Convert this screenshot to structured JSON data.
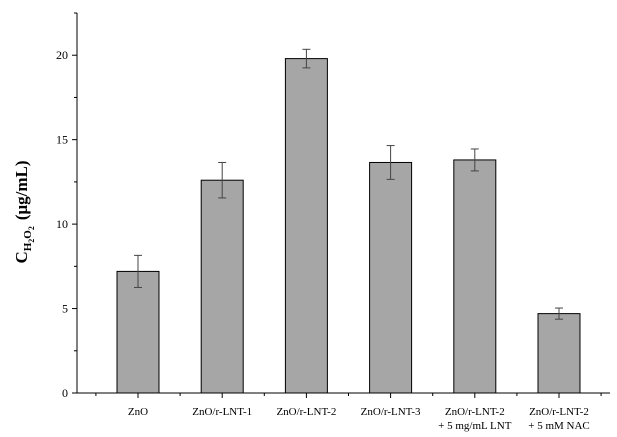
{
  "chart_data": {
    "type": "bar",
    "categories": [
      [
        "ZnO"
      ],
      [
        "ZnO/r-LNT-1"
      ],
      [
        "ZnO/r-LNT-2"
      ],
      [
        "ZnO/r-LNT-3"
      ],
      [
        "ZnO/r-LNT-2",
        "+ 5 mg/mL LNT"
      ],
      [
        "ZnO/r-LNT-2",
        "+ 5 mM NAC"
      ]
    ],
    "values": [
      7.2,
      12.6,
      19.8,
      13.65,
      13.8,
      4.7
    ],
    "errors": [
      0.95,
      1.05,
      0.55,
      1.0,
      0.65,
      0.33
    ],
    "ylabel": {
      "main": "C",
      "sub1": "H",
      "sub2": "2",
      "sub3": "O",
      "sub4": "2",
      "unit": "(μg/mL)"
    },
    "xlabel": "",
    "title": "",
    "ylim": [
      0,
      22.5
    ],
    "yticks": [
      0,
      5,
      10,
      15,
      20
    ],
    "bar_color": "#a6a6a6",
    "grid": false,
    "error_bars": true
  }
}
